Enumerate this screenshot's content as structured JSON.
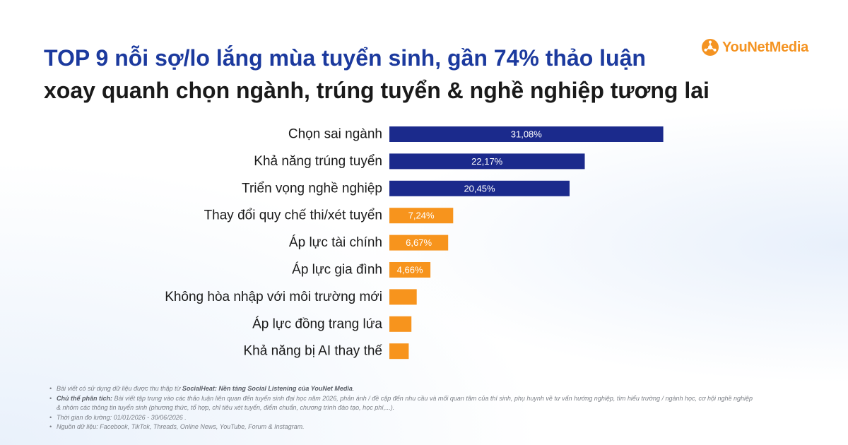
{
  "header": {
    "title_line1": "TOP 9 nỗi sợ/lo lắng mùa tuyển sinh, gần 74% thảo luận",
    "title_line2": "xoay quanh chọn ngành, trúng tuyển & nghề nghiệp tương lai"
  },
  "logo": {
    "text_a": "YouNet",
    "text_b": "Media",
    "icon": "younet-logo-icon",
    "color": "#f49321"
  },
  "colors": {
    "primary_bar": "#1b2a8c",
    "secondary_bar": "#f7941d",
    "title_blue": "#1c3a9e"
  },
  "chart_data": {
    "type": "bar",
    "orientation": "horizontal",
    "title": "",
    "xlabel": "",
    "ylabel": "",
    "xlim": [
      0,
      35
    ],
    "grid": false,
    "categories": [
      "Chọn sai ngành",
      "Khả năng trúng tuyển",
      "Triển vọng nghề nghiệp",
      "Thay đổi quy chế thi/xét tuyển",
      "Áp lực tài chính",
      "Áp lực gia đình",
      "Không hòa nhập với môi trường mới",
      "Áp lực đồng trang lứa",
      "Khả năng bị AI thay thế"
    ],
    "values": [
      31.08,
      22.17,
      20.45,
      7.24,
      6.67,
      4.66,
      3.1,
      2.5,
      2.2
    ],
    "value_labels": [
      "31,08%",
      "22,17%",
      "20,45%",
      "7,24%",
      "6,67%",
      "4,66%",
      "",
      "",
      ""
    ],
    "bar_colors": [
      "#1b2a8c",
      "#1b2a8c",
      "#1b2a8c",
      "#f7941d",
      "#f7941d",
      "#f7941d",
      "#f7941d",
      "#f7941d",
      "#f7941d"
    ]
  },
  "notes": {
    "line1_pre": "Bài viết có sử dụng dữ liệu được thu thập từ ",
    "line1_bold": "SocialHeat: Nền tảng Social Listening của YouNet Media",
    "line1_post": ".",
    "line2_bold": "Chủ thể phân tích:",
    "line2_text": " Bài viết tập trung vào các thảo luận liên quan đến tuyển sinh đại học năm 2026, phản ánh / đề cập đến nhu cầu và mối quan tâm của thí sinh, phụ huynh về tư vấn hướng nghiệp, tìm hiểu trường / ngành học, cơ hội nghề nghiệp & nhóm các thông tin tuyển sinh (phương thức, tổ hợp, chỉ tiêu xét tuyển, điểm chuẩn, chương trình đào tạo, học phí,...).",
    "line3": "Thời gian đo lường: 01/01/2026 - 30/06/2026 .",
    "line4": "Nguồn dữ liệu: Facebook, TikTok, Threads, Online News, YouTube, Forum & Instagram."
  }
}
